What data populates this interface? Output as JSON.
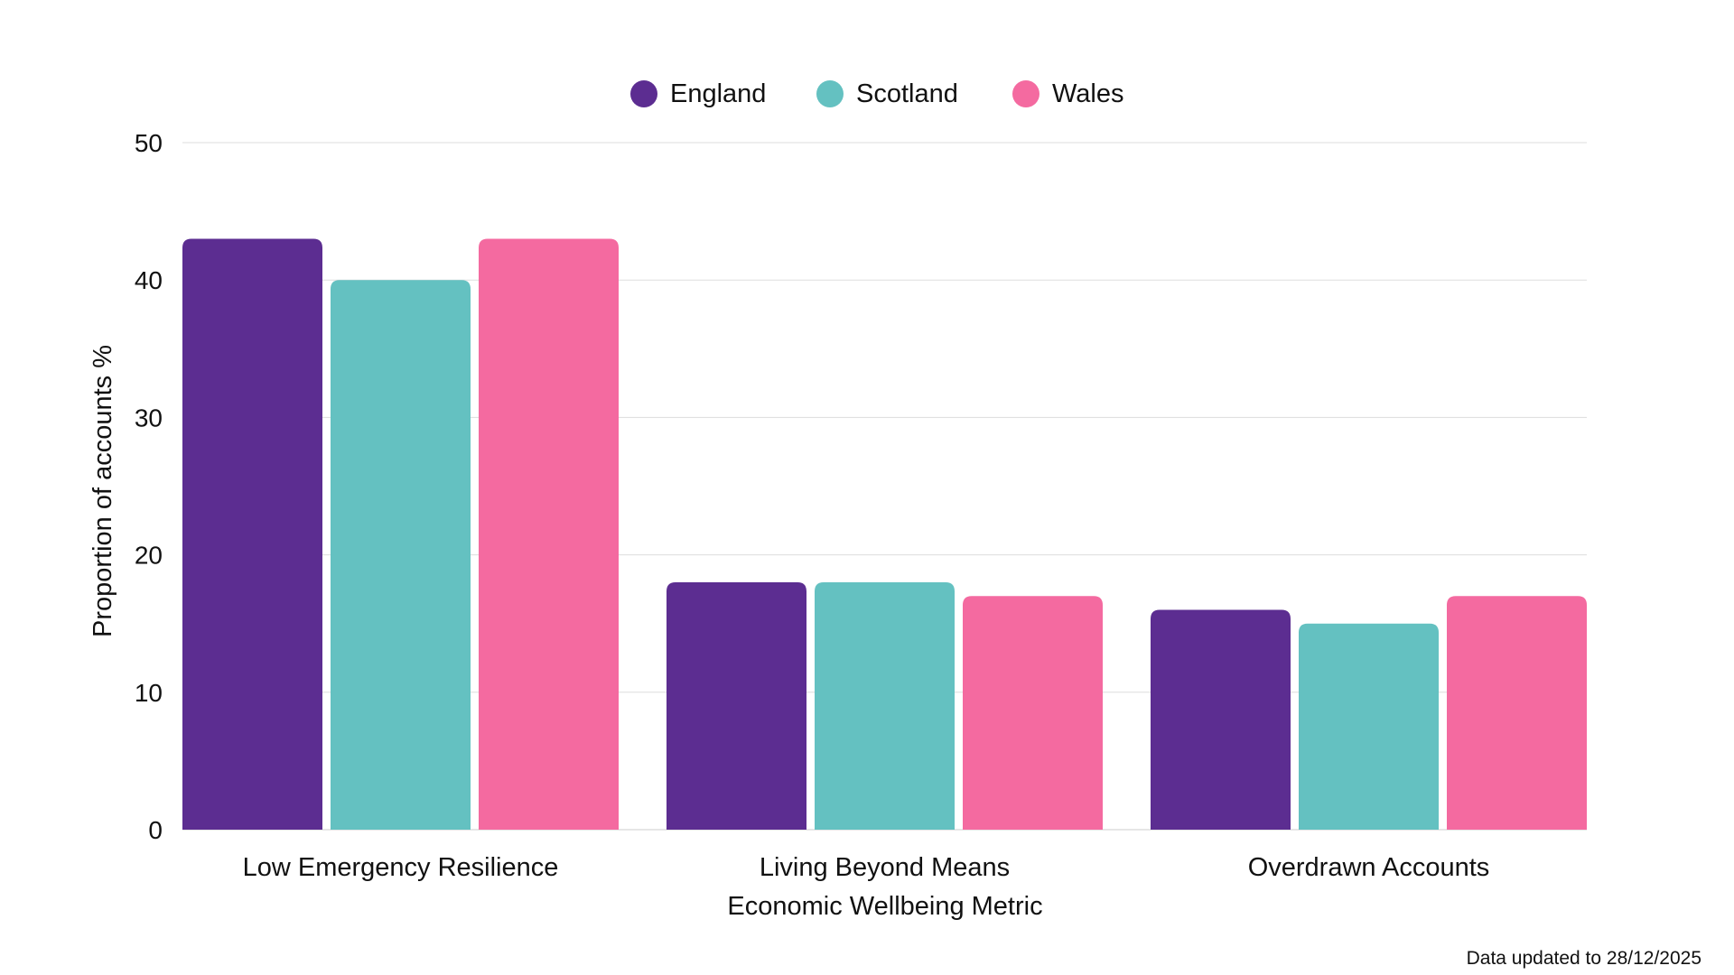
{
  "chart_data": {
    "type": "bar",
    "title": "",
    "xlabel": "Economic Wellbeing Metric",
    "ylabel": "Proportion of accounts %",
    "ylim": [
      0,
      50
    ],
    "yticks": [
      0,
      10,
      20,
      30,
      40,
      50
    ],
    "ytick_labels": [
      "0",
      "10",
      "20",
      "30",
      "40",
      "50"
    ],
    "grid": true,
    "legend_position": "top-center",
    "categories": [
      "Low Emergency Resilience",
      "Living Beyond Means",
      "Overdrawn Accounts"
    ],
    "series": [
      {
        "name": "England",
        "color": "#5c2d91",
        "values": [
          43,
          18,
          16
        ]
      },
      {
        "name": "Scotland",
        "color": "#64c1c1",
        "values": [
          40,
          18,
          15
        ]
      },
      {
        "name": "Wales",
        "color": "#f46aa0",
        "values": [
          43,
          17,
          17
        ]
      }
    ]
  },
  "footnote": "Data updated to 28/12/2025",
  "colors": {
    "gridline": "#dddddd",
    "text": "#111111"
  }
}
